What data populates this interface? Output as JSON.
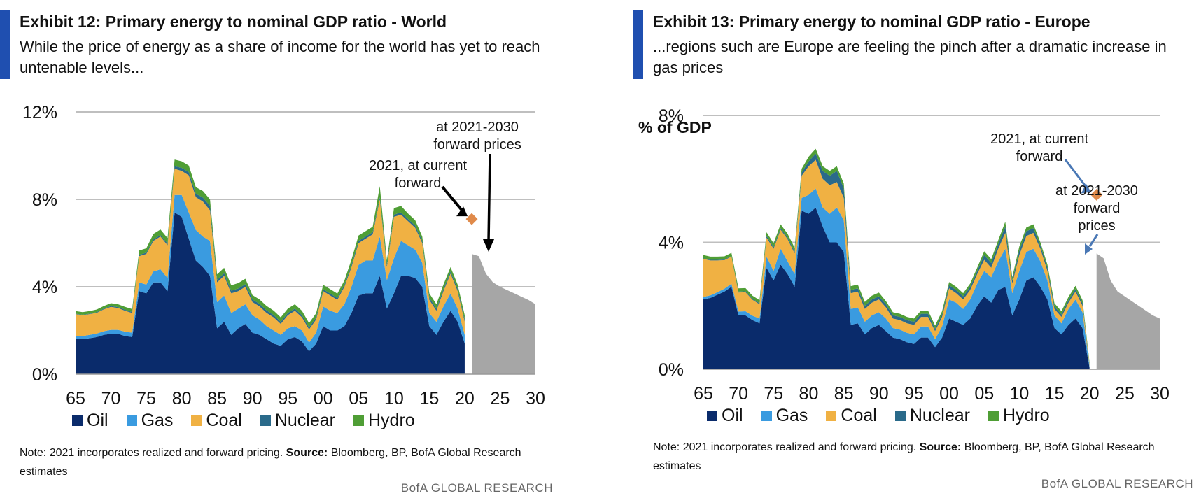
{
  "colors": {
    "oil": "#0a2b6b",
    "gas": "#3a9be0",
    "coal": "#f0b143",
    "nuclear": "#2a6a8a",
    "hydro": "#4f9e35",
    "forward": "#a6a6a6",
    "marker": "#e08a4a",
    "accent": "#1f4fb0",
    "grid": "#bfbfbf"
  },
  "panels": [
    {
      "title": "Exhibit 12: Primary energy to nominal GDP ratio - World",
      "subtitle": "While the price of energy  as a share of income for the world has yet to reach untenable levels...",
      "legend": [
        "Oil",
        "Gas",
        "Coal",
        "Nuclear",
        "Hydro"
      ],
      "note_prefix": "Note: 2021  incorporates realized and forward pricing.",
      "note_source_label": "Source:",
      "note_text": " Bloomberg, BP, BofA Global Research  estimates",
      "footer": "BofA GLOBAL RESEARCH"
    },
    {
      "title": "Exhibit 13: Primary energy to nominal GDP ratio - Europe",
      "subtitle": "...regions such are Europe are feeling the pinch after a dramatic increase in gas prices",
      "legend": [
        "Oil",
        "Gas",
        "Coal",
        "Nuclear",
        "Hydro"
      ],
      "note_prefix": "Note: 2021  incorporates realized and forward pricing.",
      "note_source_label": "Source:",
      "note_text": " Bloomberg, BP, BofA Global Research  estimates",
      "footer": "BofA GLOBAL RESEARCH"
    }
  ],
  "chart_data": [
    {
      "type": "area",
      "title": "Exhibit 12: Primary energy to nominal GDP ratio - World",
      "ylabel": "",
      "ylim": [
        0,
        12
      ],
      "yticks": [
        0,
        4,
        8,
        12
      ],
      "ytick_labels": [
        "0%",
        "4%",
        "8%",
        "12%"
      ],
      "xlim": [
        65,
        30
      ],
      "xtick_labels": [
        "65",
        "70",
        "75",
        "80",
        "85",
        "90",
        "95",
        "00",
        "05",
        "10",
        "15",
        "20",
        "25",
        "30"
      ],
      "x_start_year": 1965,
      "x_end_year": 2030,
      "legend": [
        "Oil",
        "Gas",
        "Coal",
        "Nuclear",
        "Hydro"
      ],
      "series": [
        {
          "name": "Oil",
          "values": [
            1.6,
            1.6,
            1.65,
            1.7,
            1.8,
            1.85,
            1.85,
            1.75,
            1.7,
            3.8,
            3.7,
            4.2,
            4.2,
            3.8,
            7.4,
            7.2,
            6.2,
            5.2,
            4.9,
            4.5,
            2.1,
            2.4,
            1.8,
            2.1,
            2.3,
            1.9,
            1.8,
            1.6,
            1.4,
            1.3,
            1.6,
            1.7,
            1.5,
            1.05,
            1.4,
            2.2,
            2.0,
            2.0,
            2.2,
            2.8,
            3.6,
            3.7,
            3.7,
            4.5,
            3.0,
            3.7,
            4.5,
            4.5,
            4.4,
            4.0,
            2.2,
            1.8,
            2.4,
            2.9,
            2.4,
            1.4
          ]
        },
        {
          "name": "Gas",
          "values": [
            0.15,
            0.15,
            0.15,
            0.16,
            0.17,
            0.18,
            0.18,
            0.2,
            0.2,
            0.4,
            0.4,
            0.5,
            0.6,
            0.6,
            0.8,
            1.0,
            1.2,
            1.4,
            1.4,
            1.6,
            1.2,
            1.2,
            1.0,
            0.9,
            0.9,
            0.8,
            0.7,
            0.6,
            0.6,
            0.5,
            0.5,
            0.5,
            0.5,
            0.4,
            0.5,
            0.9,
            0.9,
            0.8,
            1.0,
            1.2,
            1.4,
            1.5,
            1.5,
            1.8,
            1.3,
            1.6,
            1.6,
            1.4,
            1.3,
            1.1,
            0.6,
            0.6,
            0.7,
            0.8,
            0.6,
            0.4
          ]
        },
        {
          "name": "Coal",
          "values": [
            1.0,
            0.95,
            0.95,
            0.95,
            1.0,
            1.05,
            1.0,
            0.95,
            0.9,
            1.2,
            1.4,
            1.4,
            1.5,
            1.5,
            1.2,
            1.1,
            1.7,
            1.5,
            1.6,
            1.4,
            0.9,
            0.9,
            0.9,
            0.8,
            0.8,
            0.6,
            0.6,
            0.6,
            0.6,
            0.5,
            0.6,
            0.7,
            0.6,
            0.6,
            0.6,
            0.7,
            0.7,
            0.6,
            0.8,
            0.9,
            1.0,
            1.0,
            1.2,
            1.7,
            0.6,
            1.9,
            1.2,
            1.1,
            1.0,
            0.9,
            0.6,
            0.5,
            0.7,
            0.9,
            0.8,
            0.6
          ]
        },
        {
          "name": "Nuclear",
          "values": [
            0.02,
            0.02,
            0.02,
            0.03,
            0.03,
            0.04,
            0.04,
            0.05,
            0.05,
            0.06,
            0.06,
            0.07,
            0.07,
            0.08,
            0.12,
            0.14,
            0.15,
            0.16,
            0.18,
            0.2,
            0.12,
            0.12,
            0.12,
            0.12,
            0.12,
            0.12,
            0.12,
            0.12,
            0.11,
            0.1,
            0.1,
            0.1,
            0.1,
            0.09,
            0.09,
            0.09,
            0.09,
            0.09,
            0.09,
            0.09,
            0.1,
            0.1,
            0.1,
            0.1,
            0.1,
            0.1,
            0.1,
            0.1,
            0.1,
            0.1,
            0.1,
            0.1,
            0.1,
            0.1,
            0.1,
            0.1
          ]
        },
        {
          "name": "Hydro",
          "values": [
            0.12,
            0.12,
            0.12,
            0.12,
            0.12,
            0.13,
            0.13,
            0.13,
            0.13,
            0.2,
            0.2,
            0.25,
            0.25,
            0.25,
            0.3,
            0.3,
            0.3,
            0.3,
            0.3,
            0.3,
            0.25,
            0.25,
            0.25,
            0.25,
            0.25,
            0.2,
            0.2,
            0.2,
            0.2,
            0.2,
            0.2,
            0.2,
            0.2,
            0.2,
            0.2,
            0.2,
            0.2,
            0.2,
            0.2,
            0.25,
            0.25,
            0.25,
            0.25,
            0.5,
            0.2,
            0.3,
            0.3,
            0.25,
            0.25,
            0.2,
            0.2,
            0.2,
            0.2,
            0.2,
            0.2,
            0.2
          ]
        }
      ],
      "forward_series": {
        "name": "at 2021-2030 forward prices",
        "x": [
          2021,
          2022,
          2023,
          2024,
          2025,
          2026,
          2027,
          2028,
          2029,
          2030
        ],
        "values": [
          5.5,
          5.4,
          4.6,
          4.2,
          4.0,
          3.85,
          3.7,
          3.55,
          3.4,
          3.2
        ]
      },
      "marker": {
        "label_line1": "2021, at current",
        "label_line2": "forward",
        "x": 2021,
        "y": 7.1
      },
      "annotation_forward": {
        "line1": "at 2021-2030",
        "line2": "forward prices"
      }
    },
    {
      "type": "area",
      "title": "Exhibit 13: Primary energy to nominal GDP ratio - Europe",
      "ylabel": "% of GDP",
      "ylim": [
        0,
        8
      ],
      "yticks": [
        0,
        4,
        8
      ],
      "ytick_labels": [
        "0%",
        "4%",
        "8%"
      ],
      "xlim": [
        65,
        30
      ],
      "xtick_labels": [
        "65",
        "70",
        "75",
        "80",
        "85",
        "90",
        "95",
        "00",
        "05",
        "10",
        "15",
        "20",
        "25",
        "30"
      ],
      "x_start_year": 1965,
      "x_end_year": 2030,
      "legend": [
        "Oil",
        "Gas",
        "Coal",
        "Nuclear",
        "Hydro"
      ],
      "series": [
        {
          "name": "Oil",
          "values": [
            2.2,
            2.25,
            2.35,
            2.45,
            2.6,
            1.7,
            1.7,
            1.55,
            1.45,
            3.2,
            2.8,
            3.3,
            3.0,
            2.6,
            5.0,
            4.9,
            5.1,
            4.5,
            4.0,
            4.0,
            3.7,
            1.4,
            1.45,
            1.1,
            1.3,
            1.4,
            1.2,
            1.0,
            0.95,
            0.85,
            0.8,
            1.0,
            1.0,
            0.7,
            1.0,
            1.6,
            1.5,
            1.4,
            1.6,
            2.0,
            2.3,
            2.1,
            2.5,
            2.6,
            1.7,
            2.2,
            2.8,
            2.9,
            2.6,
            2.2,
            1.3,
            1.1,
            1.4,
            1.6,
            1.3,
            0.05
          ]
        },
        {
          "name": "Gas",
          "values": [
            0.08,
            0.08,
            0.08,
            0.09,
            0.1,
            0.12,
            0.13,
            0.14,
            0.15,
            0.35,
            0.3,
            0.5,
            0.4,
            0.4,
            0.4,
            0.6,
            0.6,
            0.6,
            0.9,
            1.1,
            1.0,
            0.5,
            0.5,
            0.4,
            0.4,
            0.4,
            0.4,
            0.3,
            0.3,
            0.3,
            0.3,
            0.35,
            0.35,
            0.25,
            0.35,
            0.6,
            0.6,
            0.5,
            0.6,
            0.7,
            0.8,
            0.8,
            0.9,
            1.2,
            0.7,
            0.9,
            0.9,
            0.9,
            0.8,
            0.6,
            0.4,
            0.35,
            0.5,
            0.6,
            0.5,
            0.05
          ]
        },
        {
          "name": "Coal",
          "values": [
            1.2,
            1.1,
            1.0,
            0.9,
            0.85,
            0.6,
            0.6,
            0.5,
            0.45,
            0.6,
            0.7,
            0.6,
            0.7,
            0.65,
            0.7,
            0.9,
            0.9,
            0.9,
            0.9,
            0.8,
            0.7,
            0.5,
            0.5,
            0.4,
            0.4,
            0.4,
            0.35,
            0.3,
            0.3,
            0.3,
            0.3,
            0.3,
            0.3,
            0.25,
            0.3,
            0.35,
            0.3,
            0.3,
            0.3,
            0.3,
            0.35,
            0.3,
            0.4,
            0.5,
            0.3,
            0.5,
            0.5,
            0.5,
            0.4,
            0.3,
            0.2,
            0.2,
            0.2,
            0.25,
            0.2,
            0.05
          ]
        },
        {
          "name": "Nuclear",
          "values": [
            0.02,
            0.02,
            0.02,
            0.02,
            0.02,
            0.03,
            0.03,
            0.03,
            0.03,
            0.05,
            0.05,
            0.05,
            0.05,
            0.06,
            0.1,
            0.15,
            0.2,
            0.25,
            0.3,
            0.35,
            0.3,
            0.1,
            0.1,
            0.1,
            0.1,
            0.1,
            0.1,
            0.1,
            0.1,
            0.1,
            0.1,
            0.1,
            0.1,
            0.08,
            0.08,
            0.1,
            0.1,
            0.1,
            0.1,
            0.1,
            0.15,
            0.15,
            0.15,
            0.2,
            0.1,
            0.15,
            0.15,
            0.15,
            0.1,
            0.1,
            0.08,
            0.08,
            0.08,
            0.08,
            0.08,
            0.02
          ]
        },
        {
          "name": "Hydro",
          "values": [
            0.1,
            0.1,
            0.1,
            0.1,
            0.1,
            0.1,
            0.1,
            0.1,
            0.1,
            0.12,
            0.12,
            0.12,
            0.12,
            0.12,
            0.12,
            0.15,
            0.15,
            0.15,
            0.15,
            0.15,
            0.15,
            0.12,
            0.12,
            0.12,
            0.12,
            0.12,
            0.1,
            0.1,
            0.1,
            0.1,
            0.1,
            0.1,
            0.1,
            0.1,
            0.1,
            0.1,
            0.1,
            0.1,
            0.1,
            0.1,
            0.12,
            0.12,
            0.12,
            0.15,
            0.1,
            0.12,
            0.12,
            0.12,
            0.1,
            0.1,
            0.1,
            0.1,
            0.1,
            0.1,
            0.1,
            0.05
          ]
        }
      ],
      "forward_series": {
        "name": "at 2021-2030 forward prices",
        "x": [
          2021,
          2022,
          2023,
          2024,
          2025,
          2026,
          2027,
          2028,
          2029,
          2030
        ],
        "values": [
          3.65,
          3.5,
          2.8,
          2.45,
          2.3,
          2.15,
          2.0,
          1.85,
          1.7,
          1.6
        ]
      },
      "marker": {
        "label_line1": "2021, at current",
        "label_line2": "forward",
        "x": 2021,
        "y": 5.5
      },
      "annotation_forward": {
        "line1": "at 2021-2030",
        "line2": "forward",
        "line3": "prices"
      }
    }
  ]
}
